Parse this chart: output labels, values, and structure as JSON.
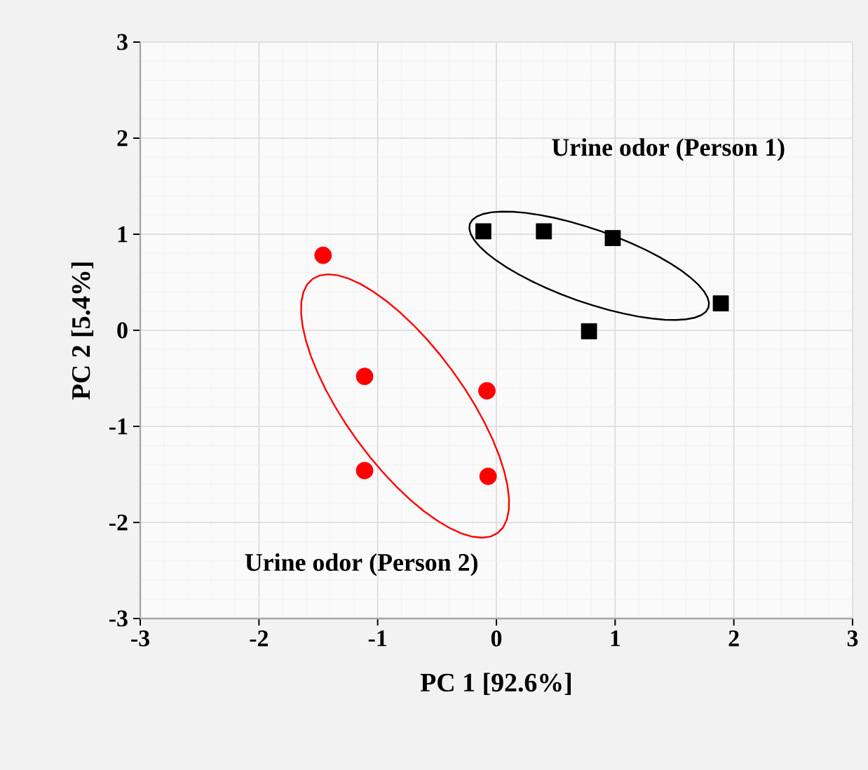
{
  "chart_data": {
    "type": "scatter",
    "xlabel": "PC 1 [92.6%]",
    "ylabel": "PC 2 [5.4%]",
    "xlim": [
      -3,
      3
    ],
    "ylim": [
      -3,
      3
    ],
    "xticks": [
      -3,
      -2,
      -1,
      0,
      1,
      2,
      3
    ],
    "yticks": [
      -3,
      -2,
      -1,
      0,
      1,
      2,
      3
    ],
    "grid": true,
    "series": [
      {
        "name": "Urine odor (Person 1)",
        "color": "#000000",
        "marker": "square",
        "x": [
          -0.11,
          0.4,
          0.98,
          1.89,
          0.78
        ],
        "values": [
          1.03,
          1.03,
          0.96,
          0.28,
          -0.01
        ]
      },
      {
        "name": "Urine odor (Person 2)",
        "color": "#ff0000",
        "marker": "circle",
        "x": [
          -1.46,
          -1.11,
          -0.08,
          -1.11,
          -0.07
        ],
        "values": [
          0.78,
          -0.48,
          -0.63,
          -1.46,
          -1.52
        ]
      }
    ]
  }
}
